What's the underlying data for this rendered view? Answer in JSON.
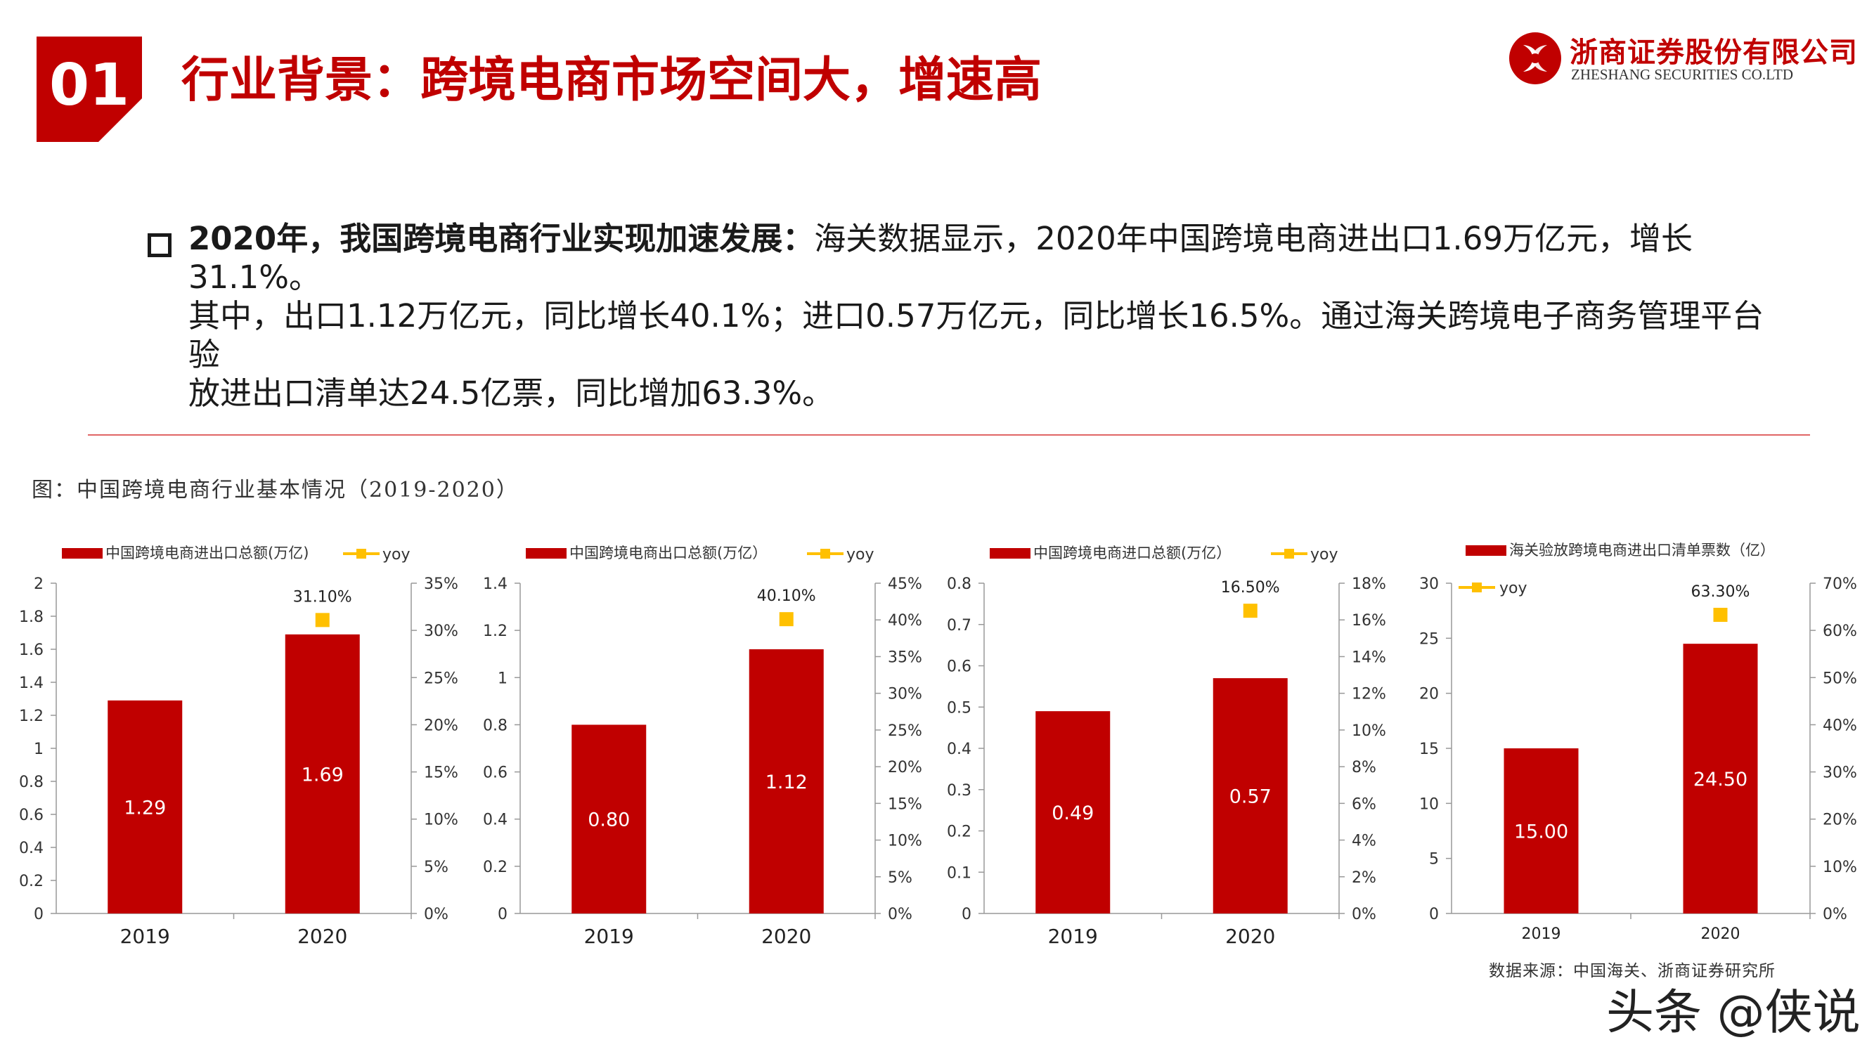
{
  "header": {
    "section_number": "01",
    "title": "行业背景：跨境电商市场空间大，增速高",
    "logo_cn": "浙商证券股份有限公司",
    "logo_en": "ZHESHANG SECURITIES CO.LTD"
  },
  "bullet": {
    "bold": "2020年，我国跨境电商行业实现加速发展：",
    "text1": "海关数据显示，2020年中国跨境电商进出口1.69万亿元，增长31.1%。",
    "text2": "其中，出口1.12万亿元，同比增长40.1%；进口0.57万亿元，同比增长16.5%。通过海关跨境电子商务管理平台验",
    "text3": "放进出口清单达24.5亿票，同比增加63.3%。"
  },
  "figure_caption": "图：中国跨境电商行业基本情况（2019-2020）",
  "source": "数据来源：中国海关、浙商证券研究所",
  "watermark": "头条 @侠说",
  "colors": {
    "bar": "#c00000",
    "yoy": "#ffc000",
    "accent": "#c00000"
  },
  "chart_data": [
    {
      "type": "bar",
      "legend_bar": "中国跨境电商进出口总额(万亿)",
      "legend_yoy": "yoy",
      "legend_layout": "inline",
      "categories": [
        "2019",
        "2020"
      ],
      "values": [
        1.29,
        1.69
      ],
      "value_labels": [
        "1.29",
        "1.69"
      ],
      "yoy": [
        null,
        31.1
      ],
      "yoy_labels": [
        "",
        "31.10%"
      ],
      "ylim": [
        0,
        2
      ],
      "yticks": [
        "0",
        "0.2",
        "0.4",
        "0.6",
        "0.8",
        "1",
        "1.2",
        "1.4",
        "1.6",
        "1.8",
        "2"
      ],
      "y2lim": [
        0,
        35
      ],
      "y2ticks": [
        "0%",
        "5%",
        "10%",
        "15%",
        "20%",
        "25%",
        "30%",
        "35%"
      ]
    },
    {
      "type": "bar",
      "legend_bar": "中国跨境电商出口总额(万亿）",
      "legend_yoy": "yoy",
      "legend_layout": "inline",
      "categories": [
        "2019",
        "2020"
      ],
      "values": [
        0.8,
        1.12
      ],
      "value_labels": [
        "0.80",
        "1.12"
      ],
      "yoy": [
        null,
        40.1
      ],
      "yoy_labels": [
        "",
        "40.10%"
      ],
      "ylim": [
        0,
        1.4
      ],
      "yticks": [
        "0",
        "0.2",
        "0.4",
        "0.6",
        "0.8",
        "1",
        "1.2",
        "1.4"
      ],
      "y2lim": [
        0,
        45
      ],
      "y2ticks": [
        "0%",
        "5%",
        "10%",
        "15%",
        "20%",
        "25%",
        "30%",
        "35%",
        "40%",
        "45%"
      ]
    },
    {
      "type": "bar",
      "legend_bar": "中国跨境电商进口总额(万亿）",
      "legend_yoy": "yoy",
      "legend_layout": "inline",
      "categories": [
        "2019",
        "2020"
      ],
      "values": [
        0.49,
        0.57
      ],
      "value_labels": [
        "0.49",
        "0.57"
      ],
      "yoy": [
        null,
        16.5
      ],
      "yoy_labels": [
        "",
        "16.50%"
      ],
      "ylim": [
        0,
        0.8
      ],
      "yticks": [
        "0",
        "0.1",
        "0.2",
        "0.3",
        "0.4",
        "0.5",
        "0.6",
        "0.7",
        "0.8"
      ],
      "y2lim": [
        0,
        18
      ],
      "y2ticks": [
        "0%",
        "2%",
        "4%",
        "6%",
        "8%",
        "10%",
        "12%",
        "14%",
        "16%",
        "18%"
      ]
    },
    {
      "type": "bar",
      "legend_bar": "海关验放跨境电商进出口清单票数（亿）",
      "legend_yoy": "yoy",
      "legend_layout": "stacked",
      "categories": [
        "2019",
        "2020"
      ],
      "values": [
        15.0,
        24.5
      ],
      "value_labels": [
        "15.00",
        "24.50"
      ],
      "yoy": [
        null,
        63.3
      ],
      "yoy_labels": [
        "",
        "63.30%"
      ],
      "ylim": [
        0,
        30
      ],
      "yticks": [
        "0",
        "5",
        "10",
        "15",
        "20",
        "25",
        "30"
      ],
      "y2lim": [
        0,
        70
      ],
      "y2ticks": [
        "0%",
        "10%",
        "20%",
        "30%",
        "40%",
        "50%",
        "60%",
        "70%"
      ]
    }
  ]
}
